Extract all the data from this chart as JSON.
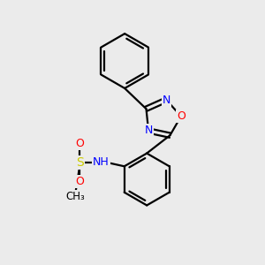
{
  "bg_color": "#ebebeb",
  "bond_color": "#000000",
  "bond_width": 1.6,
  "atom_colors": {
    "N": "#0000ff",
    "O": "#ff0000",
    "S": "#cccc00",
    "C": "#000000"
  },
  "font_size": 8.5,
  "fig_size": [
    3.0,
    3.0
  ],
  "dpi": 100,
  "xlim": [
    0,
    10
  ],
  "ylim": [
    0,
    10
  ]
}
